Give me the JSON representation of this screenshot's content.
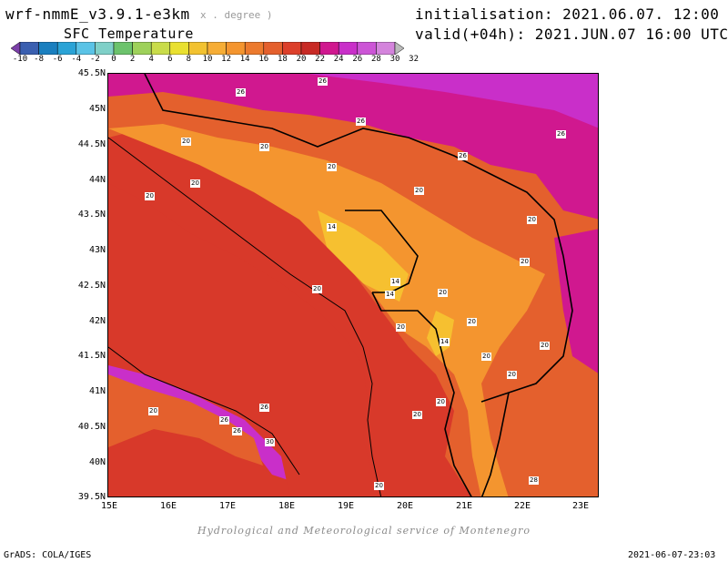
{
  "header": {
    "model_name": "wrf-nmmE_v3.9.1-e3km",
    "model_resolution": "x . degree )",
    "field_title": "SFC Temperature",
    "init_text": "initialisation: 2021.06.07. 12:00 UTC",
    "valid_text": "valid(+04h): 2021.JUN.07 16:00 UTC"
  },
  "colorbar": {
    "ticks": [
      "-10",
      "-8",
      "-6",
      "-4",
      "-2",
      "0",
      "2",
      "4",
      "6",
      "8",
      "10",
      "12",
      "14",
      "16",
      "18",
      "20",
      "22",
      "24",
      "26",
      "28",
      "30",
      "32"
    ],
    "colors": [
      "#7b3fa8",
      "#3a5fb0",
      "#1a7fbf",
      "#2aa3d6",
      "#5ac3e6",
      "#7fd0c8",
      "#6cc36c",
      "#9ed15a",
      "#c9dc4a",
      "#e9e030",
      "#f2c230",
      "#f6ad35",
      "#f4952f",
      "#ec7a2e",
      "#e4602d",
      "#dc3f2a",
      "#c82a25",
      "#d0188f",
      "#c92fc9",
      "#cc55d6",
      "#d484dc",
      "#bbbbbb"
    ]
  },
  "map": {
    "lat_labels": [
      "45.5N",
      "45N",
      "44.5N",
      "44N",
      "43.5N",
      "43N",
      "42.5N",
      "42N",
      "41.5N",
      "41N",
      "40.5N",
      "40N",
      "39.5N"
    ],
    "lon_labels": [
      "15E",
      "16E",
      "17E",
      "18E",
      "19E",
      "20E",
      "21E",
      "22E",
      "23E"
    ],
    "contour_labels": [
      "26",
      "26",
      "26",
      "26",
      "26",
      "20",
      "20",
      "20",
      "20",
      "20",
      "20",
      "20",
      "20",
      "14",
      "14",
      "14",
      "14",
      "20",
      "20",
      "20",
      "20",
      "20",
      "20",
      "20",
      "20",
      "26",
      "26",
      "26",
      "30",
      "20",
      "28",
      "20",
      "20"
    ],
    "colors": {
      "sea": "#d8392a",
      "land_warm": "#e4602d",
      "land_mid": "#f4952f",
      "land_cool": "#f6c030",
      "high_temp": "#d0188f",
      "very_high": "#c92fc9"
    }
  },
  "footer": {
    "credit": "Hydrological and Meteorological service of Montenegro",
    "software": "GrADS: COLA/IGES",
    "timestamp": "2021-06-07-23:03"
  }
}
